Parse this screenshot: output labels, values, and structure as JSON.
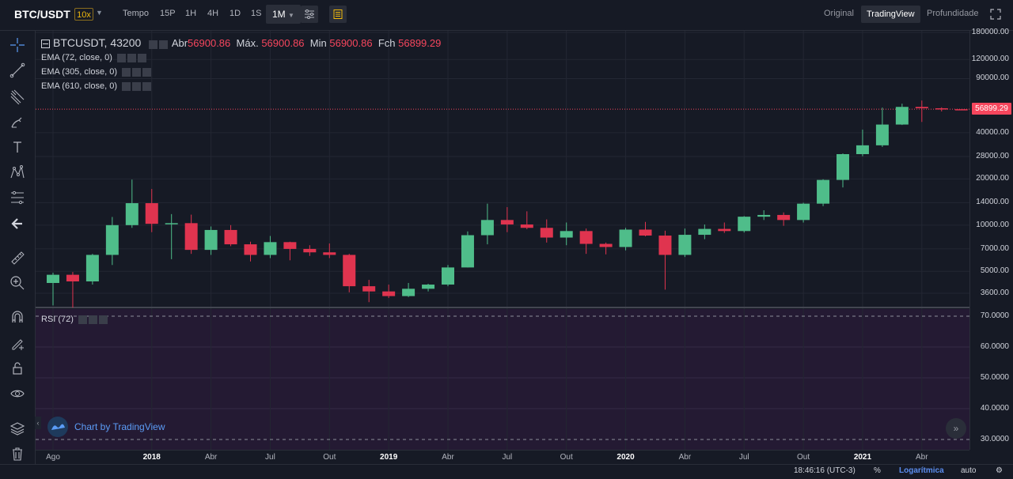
{
  "header": {
    "symbol": "BTC/USDT",
    "leverage": "10x",
    "timeframes": [
      "Tempo",
      "15P",
      "1H",
      "4H",
      "1D",
      "1S"
    ],
    "active_timeframe": "1M",
    "views": [
      "Original",
      "TradingView",
      "Profundidade"
    ],
    "active_view": "TradingView"
  },
  "legend": {
    "symbol": "BTCUSDT, 43200",
    "open_label": "Abr",
    "open": "56900.86",
    "high_label": "Máx.",
    "high": "56900.86",
    "low_label": "Min",
    "low": "56900.86",
    "close_label": "Fch",
    "close": "56899.29",
    "emas": [
      "EMA (72, close, 0)",
      "EMA (305, close, 0)",
      "EMA (610, close, 0)"
    ],
    "rsi": "RSI (72)"
  },
  "price_axis": {
    "ticks": [
      "180000.00",
      "120000.00",
      "90000.00",
      "56899.29",
      "40000.00",
      "28000.00",
      "20000.00",
      "14000.00",
      "10000.00",
      "7000.00",
      "5000.00",
      "3600.00"
    ],
    "last_price": "56899.29"
  },
  "rsi_axis": {
    "ticks": [
      "70.0000",
      "60.0000",
      "50.0000",
      "40.0000",
      "30.0000"
    ]
  },
  "time_axis": {
    "labels": [
      "Ago",
      "2018",
      "Abr",
      "Jul",
      "Out",
      "2019",
      "Abr",
      "Jul",
      "Out",
      "2020",
      "Abr",
      "Jul",
      "Out",
      "2021",
      "Abr"
    ]
  },
  "watermark": "Chart by TradingView",
  "footer": {
    "time": "18:46:16 (UTC-3)",
    "percent": "%",
    "log": "Logarítmica",
    "auto": "auto"
  },
  "colors": {
    "up": "#4fbd8a",
    "down": "#e0344f",
    "bg": "#161a25",
    "rsi_bg": "#2a1e3a"
  },
  "chart_data": {
    "type": "candlestick",
    "scale": "log",
    "ylim": [
      3000,
      200000
    ],
    "candles": [
      {
        "t": "2017-08",
        "o": 4200,
        "h": 4900,
        "l": 3000,
        "c": 4750
      },
      {
        "t": "2017-09",
        "o": 4750,
        "h": 4950,
        "l": 2900,
        "c": 4300
      },
      {
        "t": "2017-10",
        "o": 4300,
        "h": 6500,
        "l": 4100,
        "c": 6400
      },
      {
        "t": "2017-11",
        "o": 6400,
        "h": 11300,
        "l": 5500,
        "c": 10000
      },
      {
        "t": "2017-12",
        "o": 10000,
        "h": 19800,
        "l": 9600,
        "c": 13900
      },
      {
        "t": "2018-01",
        "o": 13900,
        "h": 17200,
        "l": 9000,
        "c": 10200
      },
      {
        "t": "2018-02",
        "o": 10200,
        "h": 11800,
        "l": 6000,
        "c": 10300
      },
      {
        "t": "2018-03",
        "o": 10300,
        "h": 11700,
        "l": 6500,
        "c": 6900
      },
      {
        "t": "2018-04",
        "o": 6900,
        "h": 9800,
        "l": 6400,
        "c": 9300
      },
      {
        "t": "2018-05",
        "o": 9300,
        "h": 10000,
        "l": 7300,
        "c": 7500
      },
      {
        "t": "2018-06",
        "o": 7500,
        "h": 7800,
        "l": 5800,
        "c": 6400
      },
      {
        "t": "2018-07",
        "o": 6400,
        "h": 8500,
        "l": 6100,
        "c": 7750
      },
      {
        "t": "2018-08",
        "o": 7750,
        "h": 7800,
        "l": 5900,
        "c": 7000
      },
      {
        "t": "2018-09",
        "o": 7000,
        "h": 7400,
        "l": 6300,
        "c": 6650
      },
      {
        "t": "2018-10",
        "o": 6650,
        "h": 7600,
        "l": 6100,
        "c": 6400
      },
      {
        "t": "2018-11",
        "o": 6400,
        "h": 6500,
        "l": 3650,
        "c": 4000
      },
      {
        "t": "2018-12",
        "o": 4000,
        "h": 4400,
        "l": 3150,
        "c": 3700
      },
      {
        "t": "2019-01",
        "o": 3700,
        "h": 4100,
        "l": 3350,
        "c": 3450
      },
      {
        "t": "2019-02",
        "o": 3450,
        "h": 4200,
        "l": 3400,
        "c": 3850
      },
      {
        "t": "2019-03",
        "o": 3850,
        "h": 4150,
        "l": 3700,
        "c": 4100
      },
      {
        "t": "2019-04",
        "o": 4100,
        "h": 5500,
        "l": 4000,
        "c": 5300
      },
      {
        "t": "2019-05",
        "o": 5300,
        "h": 9100,
        "l": 5300,
        "c": 8600
      },
      {
        "t": "2019-06",
        "o": 8600,
        "h": 13800,
        "l": 7500,
        "c": 10800
      },
      {
        "t": "2019-07",
        "o": 10800,
        "h": 13100,
        "l": 9000,
        "c": 10100
      },
      {
        "t": "2019-08",
        "o": 10100,
        "h": 12300,
        "l": 9400,
        "c": 9600
      },
      {
        "t": "2019-09",
        "o": 9600,
        "h": 10900,
        "l": 7700,
        "c": 8300
      },
      {
        "t": "2019-10",
        "o": 8300,
        "h": 10400,
        "l": 7400,
        "c": 9150
      },
      {
        "t": "2019-11",
        "o": 9150,
        "h": 9500,
        "l": 6500,
        "c": 7550
      },
      {
        "t": "2019-12",
        "o": 7550,
        "h": 7700,
        "l": 6450,
        "c": 7200
      },
      {
        "t": "2020-01",
        "o": 7200,
        "h": 9600,
        "l": 6850,
        "c": 9350
      },
      {
        "t": "2020-02",
        "o": 9350,
        "h": 10500,
        "l": 8450,
        "c": 8550
      },
      {
        "t": "2020-03",
        "o": 8550,
        "h": 9200,
        "l": 3800,
        "c": 6400
      },
      {
        "t": "2020-04",
        "o": 6400,
        "h": 9500,
        "l": 6200,
        "c": 8650
      },
      {
        "t": "2020-05",
        "o": 8650,
        "h": 10100,
        "l": 8100,
        "c": 9450
      },
      {
        "t": "2020-06",
        "o": 9450,
        "h": 10400,
        "l": 8900,
        "c": 9150
      },
      {
        "t": "2020-07",
        "o": 9150,
        "h": 11450,
        "l": 8950,
        "c": 11350
      },
      {
        "t": "2020-08",
        "o": 11350,
        "h": 12500,
        "l": 10800,
        "c": 11650
      },
      {
        "t": "2020-09",
        "o": 11650,
        "h": 12100,
        "l": 9900,
        "c": 10800
      },
      {
        "t": "2020-10",
        "o": 10800,
        "h": 14000,
        "l": 10400,
        "c": 13800
      },
      {
        "t": "2020-11",
        "o": 13800,
        "h": 19900,
        "l": 13300,
        "c": 19700
      },
      {
        "t": "2020-12",
        "o": 19700,
        "h": 29300,
        "l": 17600,
        "c": 29000
      },
      {
        "t": "2021-01",
        "o": 29000,
        "h": 41900,
        "l": 28100,
        "c": 33100
      },
      {
        "t": "2021-02",
        "o": 33100,
        "h": 58300,
        "l": 32300,
        "c": 45200
      },
      {
        "t": "2021-03",
        "o": 45200,
        "h": 61800,
        "l": 44900,
        "c": 58900
      },
      {
        "t": "2021-04",
        "o": 58900,
        "h": 64800,
        "l": 47000,
        "c": 57700
      },
      {
        "t": "2021-05",
        "o": 57700,
        "h": 58500,
        "l": 55000,
        "c": 56900
      },
      {
        "t": "2021-06",
        "o": 56900.86,
        "h": 56900.86,
        "l": 56900.86,
        "c": 56899.29
      }
    ],
    "rsi": {
      "ylim": [
        25,
        75
      ],
      "bands": [
        30,
        70
      ]
    }
  }
}
